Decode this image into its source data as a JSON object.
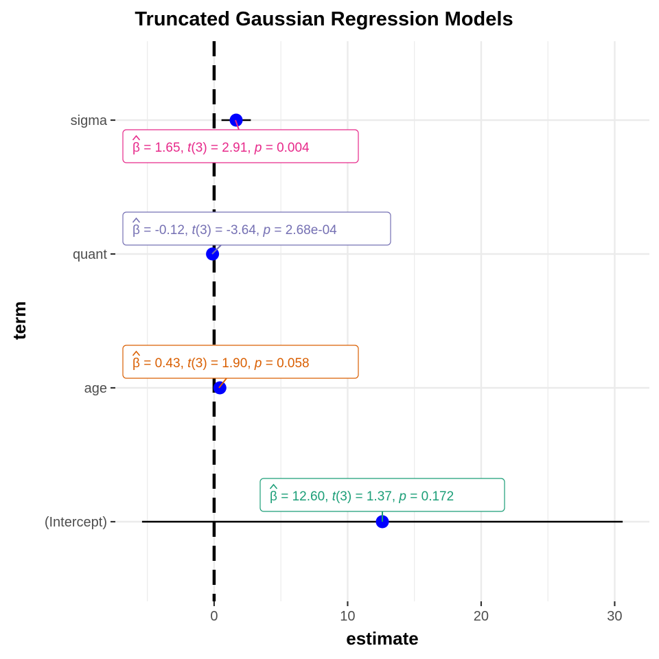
{
  "chart_data": {
    "type": "forest",
    "title": "Truncated Gaussian Regression Models",
    "xlabel": "estimate",
    "ylabel": "term",
    "xlim": [
      -7.4,
      32.6
    ],
    "x_ticks": [
      0,
      10,
      20,
      30
    ],
    "x_minor_ticks": [
      -5,
      5,
      15,
      25
    ],
    "reference_line": 0,
    "grid": true,
    "point_color": "#0000ff",
    "terms": [
      {
        "term": "sigma",
        "estimate": 1.65,
        "ci_low": 0.55,
        "ci_high": 2.75,
        "color": "#e7298a",
        "label": {
          "beta": "1.65",
          "t_df": "3",
          "t": "2.91",
          "p": "0.004"
        }
      },
      {
        "term": "quant",
        "estimate": -0.12,
        "ci_low": -0.22,
        "ci_high": -0.02,
        "color": "#7570b3",
        "label": {
          "beta": "-0.12",
          "t_df": "3",
          "t": "-3.64",
          "p": "2.68e-04"
        }
      },
      {
        "term": "age",
        "estimate": 0.43,
        "ci_low": -0.01,
        "ci_high": 0.87,
        "color": "#d95f02",
        "label": {
          "beta": "0.43",
          "t_df": "3",
          "t": "1.90",
          "p": "0.058"
        }
      },
      {
        "term": "(Intercept)",
        "estimate": 12.6,
        "ci_low": -5.4,
        "ci_high": 30.6,
        "color": "#1b9e77",
        "label": {
          "beta": "12.60",
          "t_df": "3",
          "t": "1.37",
          "p": "0.172"
        }
      }
    ]
  }
}
